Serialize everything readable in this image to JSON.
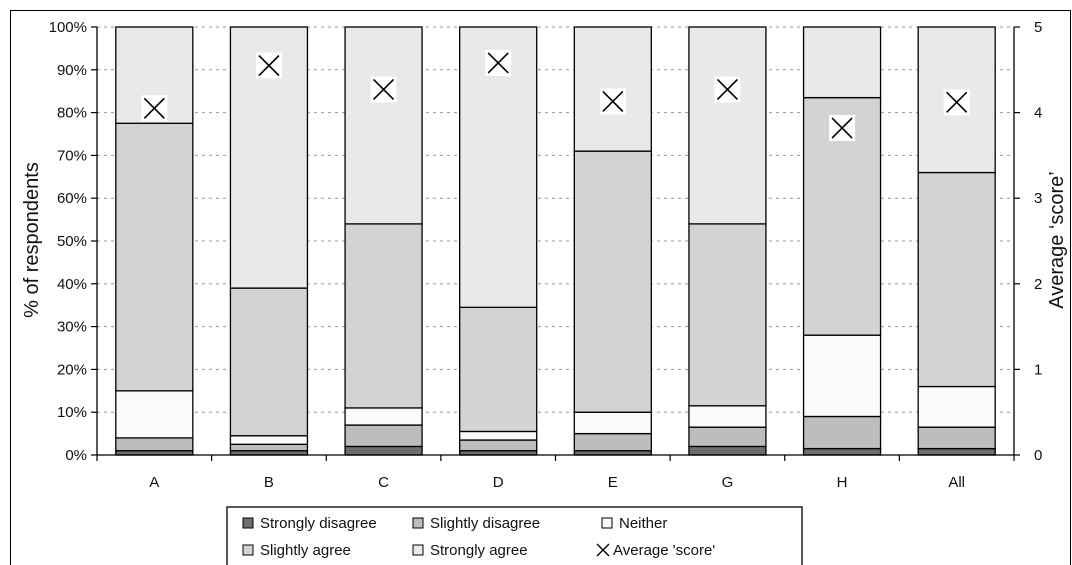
{
  "chart_data": {
    "type": "bar",
    "stacked": true,
    "categories": [
      "A",
      "B",
      "C",
      "D",
      "E",
      "G",
      "H",
      "All"
    ],
    "ylabel": "% of respondents",
    "y2label": "Average ‘score’",
    "ylim": [
      0,
      100
    ],
    "y2lim": [
      0,
      5
    ],
    "yticks": [
      "0%",
      "10%",
      "20%",
      "30%",
      "40%",
      "50%",
      "60%",
      "70%",
      "80%",
      "90%",
      "100%"
    ],
    "y2ticks": [
      "0",
      "1",
      "2",
      "3",
      "4",
      "5"
    ],
    "grid": true,
    "legend_position": "bottom",
    "series": [
      {
        "name": "Strongly disagree",
        "color": "#6d6d6d",
        "values": [
          1,
          1,
          2,
          1,
          1,
          2,
          1.5,
          1.5
        ]
      },
      {
        "name": "Slightly disagree",
        "color": "#bdbdbd",
        "values": [
          3,
          1.5,
          5,
          2.5,
          4,
          4.5,
          7.5,
          5
        ]
      },
      {
        "name": "Neither",
        "color": "#fafafa",
        "values": [
          11,
          2,
          4,
          2,
          5,
          5,
          19,
          9.5
        ]
      },
      {
        "name": "Slightly agree",
        "color": "#d3d3d3",
        "values": [
          62.5,
          34.5,
          43,
          29,
          61,
          42.5,
          55.5,
          50
        ]
      },
      {
        "name": "Strongly agree",
        "color": "#e9e9e9",
        "values": [
          22.5,
          61,
          46,
          65.5,
          29,
          46,
          16.5,
          34
        ]
      }
    ],
    "average_score": {
      "name": "Average 'score'",
      "values": [
        4.05,
        4.55,
        4.27,
        4.58,
        4.13,
        4.27,
        3.82,
        4.12
      ]
    }
  }
}
